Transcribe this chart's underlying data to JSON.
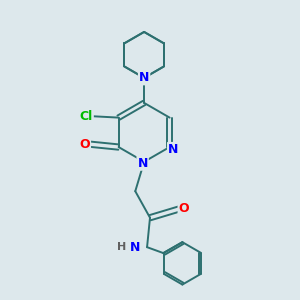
{
  "background_color": "#dde8ec",
  "bond_color": "#2d7070",
  "atom_colors": {
    "N": "#0000ff",
    "O": "#ff0000",
    "Cl": "#00bb00",
    "H": "#606060",
    "C": "#2d7070"
  }
}
